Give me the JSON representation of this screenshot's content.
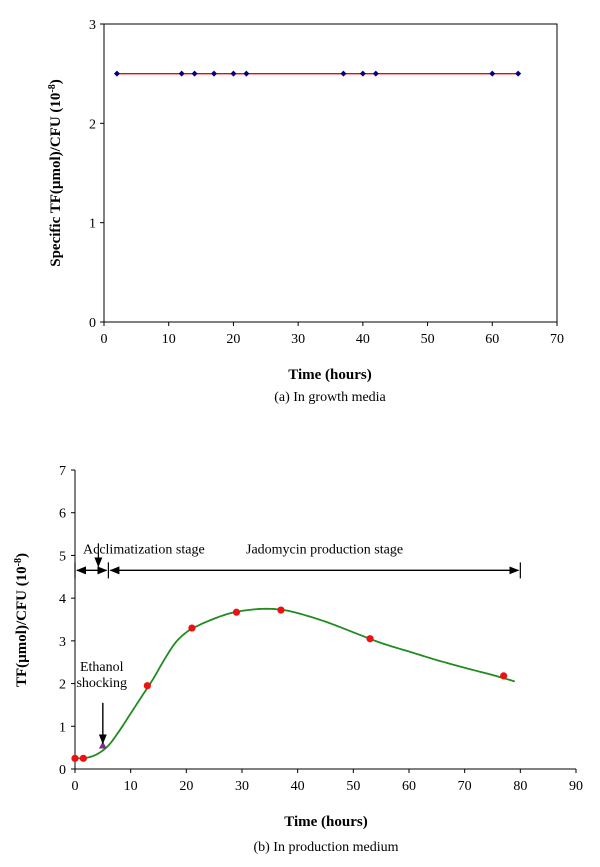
{
  "chart_data": [
    {
      "type": "line",
      "caption": "(a) In growth media",
      "xlabel": "Time (hours)",
      "ylabel_main": "Specific TF(µmol)/CFU (10",
      "ylabel_sup": "-8",
      "ylabel_end": ")",
      "xlim": [
        0,
        70
      ],
      "ylim": [
        0,
        3
      ],
      "xticks": [
        "0",
        "10",
        "20",
        "30",
        "40",
        "50",
        "60",
        "70"
      ],
      "yticks": [
        "0",
        "1",
        "2",
        "3"
      ],
      "line_color": "#ff0000",
      "marker_color": "#000080",
      "x": [
        2,
        12,
        14,
        17,
        20,
        22,
        37,
        40,
        42,
        60,
        64
      ],
      "y": [
        2.5,
        2.5,
        2.5,
        2.5,
        2.5,
        2.5,
        2.5,
        2.5,
        2.5,
        2.5,
        2.5
      ]
    },
    {
      "type": "scatter",
      "caption": "(b) In production medium",
      "xlabel": "Time (hours)",
      "ylabel_main": "TF(µmol)/CFU (10",
      "ylabel_sup": "-8",
      "ylabel_end": ")",
      "xlim": [
        0,
        90
      ],
      "ylim": [
        0,
        7
      ],
      "xticks": [
        "0",
        "10",
        "20",
        "30",
        "40",
        "50",
        "60",
        "70",
        "80",
        "90"
      ],
      "yticks": [
        "0",
        "1",
        "2",
        "3",
        "4",
        "5",
        "6",
        "7"
      ],
      "point_color": "#ee1111",
      "curve_color": "#228b22",
      "points": {
        "x": [
          0,
          1.5,
          13,
          21,
          29,
          37,
          53,
          77
        ],
        "y": [
          0.25,
          0.25,
          1.95,
          3.3,
          3.67,
          3.72,
          3.05,
          2.18
        ]
      },
      "shock_point": {
        "x": 5,
        "y": 0.55,
        "color": "#7b2d8b"
      },
      "fit_curve": {
        "x": [
          0,
          2,
          4,
          6,
          8,
          10,
          12,
          14,
          16,
          18,
          20,
          22,
          25,
          28,
          31,
          34,
          37,
          40,
          45,
          50,
          55,
          60,
          65,
          70,
          75,
          79
        ],
        "y": [
          0.25,
          0.26,
          0.35,
          0.55,
          0.9,
          1.3,
          1.7,
          2.1,
          2.55,
          2.95,
          3.2,
          3.35,
          3.52,
          3.65,
          3.72,
          3.75,
          3.73,
          3.65,
          3.45,
          3.2,
          2.95,
          2.75,
          2.55,
          2.37,
          2.2,
          2.05
        ]
      },
      "annotations": {
        "acclimatization": "Acclimatization stage",
        "jadomycin": "Jadomycin production  stage",
        "ethanol_line1": "Ethanol",
        "ethanol_line2": "shocking"
      },
      "stage_arrows": {
        "y": 4.65,
        "acclimatization_range": [
          0,
          6
        ],
        "production_range": [
          6,
          80
        ]
      },
      "ethanol_arrow": {
        "x": 5,
        "y_from": 1.55,
        "y_to": 0.6
      }
    }
  ]
}
